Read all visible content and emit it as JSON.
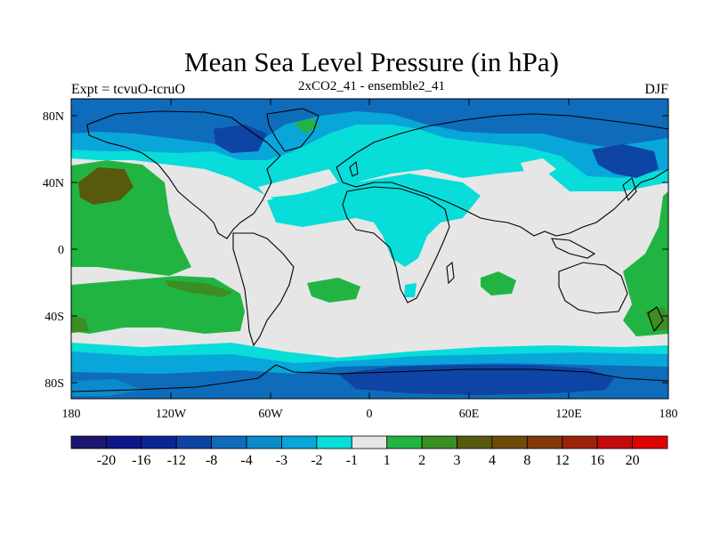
{
  "title": "Mean Sea Level Pressure (in hPa)",
  "subtitle": "2xCO2_41 - ensemble2_41",
  "left_string": "Expt = tcvuO-tcruO",
  "right_string": "DJF",
  "axes": {
    "x_ticks": [
      "180",
      "120W",
      "60W",
      "0",
      "60E",
      "120E",
      "180"
    ],
    "y_ticks": [
      "80N",
      "40N",
      "0",
      "40S",
      "80S"
    ]
  },
  "colorbar": {
    "colors": [
      "#1c1670",
      "#0e1787",
      "#0b2496",
      "#0e44a4",
      "#0e6cbb",
      "#0b8bcb",
      "#09a6d9",
      "#08ddd9",
      "#e6e6e6",
      "#22b443",
      "#3c8d22",
      "#575a0d",
      "#6e4d08",
      "#84390c",
      "#9c2209",
      "#c40a0a",
      "#de0303"
    ],
    "labels": [
      "-20",
      "-16",
      "-12",
      "-8",
      "-4",
      "-3",
      "-2",
      "-1",
      "1",
      "2",
      "3",
      "4",
      "8",
      "12",
      "16",
      "20"
    ]
  },
  "map_colors": {
    "ocean_neutral": "#e6e6e6",
    "cyan": "#08ddd9",
    "light_blue": "#09a6d9",
    "mid_blue": "#0b8bcb",
    "blue": "#0e6cbb",
    "dark_blue": "#0e44a4",
    "green": "#22b443",
    "dark_green": "#3c8d22",
    "olive": "#575a0d"
  }
}
